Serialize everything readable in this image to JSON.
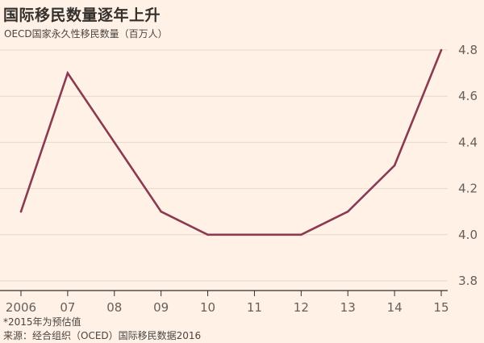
{
  "title": "国际移民数量逐年上升",
  "subtitle": "OECD国家永久性移民数量（百万人）",
  "footnote": "*2015年为预估值",
  "source": "来源：经合组织（OCED）国际移民数据2016",
  "colors": {
    "background": "#fff1e5",
    "line": "#8a3a53",
    "grid": "#e4d8cc",
    "axis": "#33302e"
  },
  "chart_data": {
    "type": "line",
    "title": "国际移民数量逐年上升",
    "subtitle": "OECD国家永久性移民数量（百万人）",
    "categories": [
      "2006",
      "07",
      "08",
      "09",
      "10",
      "11",
      "12",
      "13",
      "14",
      "15"
    ],
    "series": [
      {
        "values": [
          4.1,
          4.7,
          4.4,
          4.1,
          4.0,
          4.0,
          4.0,
          4.1,
          4.3,
          4.8
        ]
      }
    ],
    "yticks": [
      "3.8",
      "4.0",
      "4.2",
      "4.4",
      "4.6",
      "4.8"
    ],
    "ylim": [
      3.8,
      4.8
    ],
    "y_axis_position": "right",
    "grid": true,
    "legend": "none"
  }
}
